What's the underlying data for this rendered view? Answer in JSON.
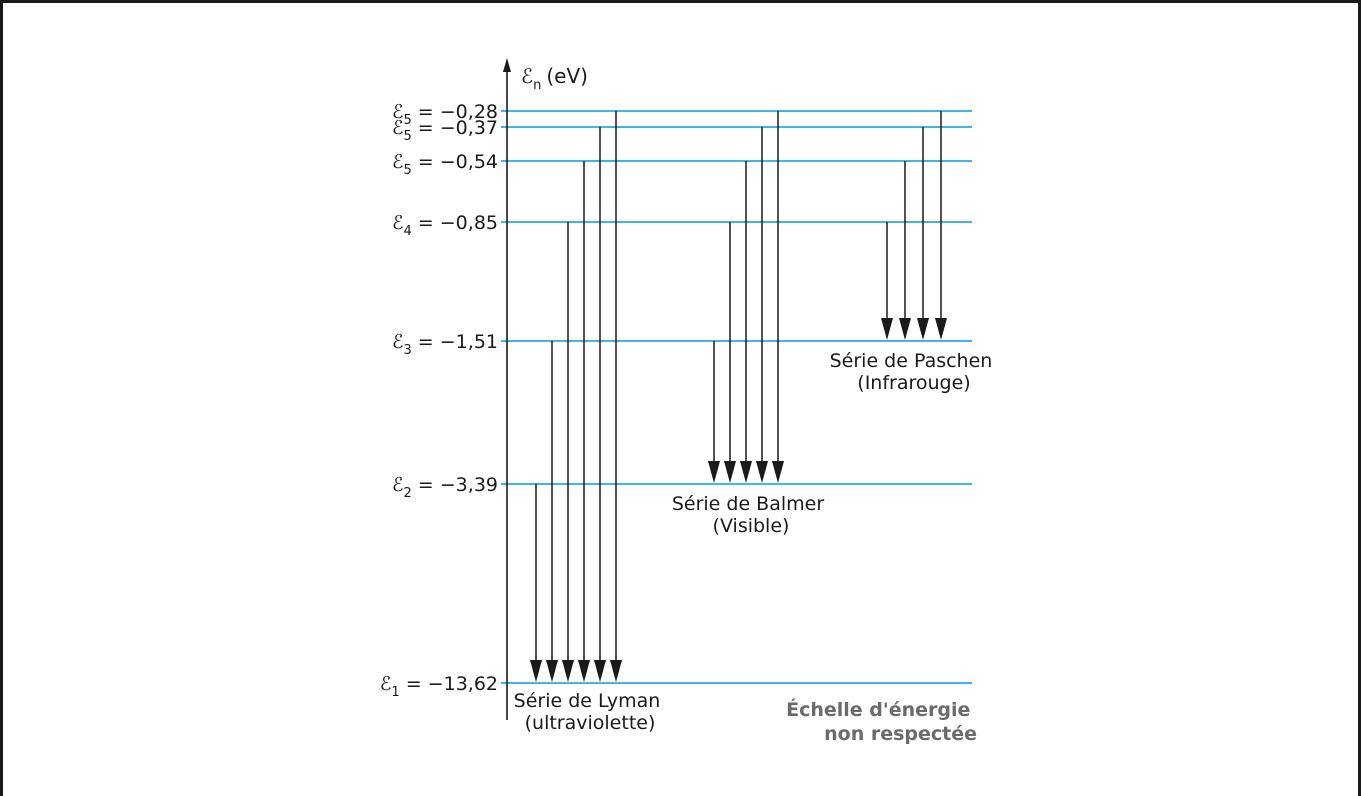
{
  "axis": {
    "symbol": "ℰ",
    "subscript": "n",
    "unit": "(eV)"
  },
  "levels": [
    {
      "symbol": "ℰ",
      "index": "5",
      "value": "−0,28",
      "energy": -0.28
    },
    {
      "symbol": "ℰ",
      "index": "5",
      "value": "−0,37",
      "energy": -0.37
    },
    {
      "symbol": "ℰ",
      "index": "5",
      "value": "−0,54",
      "energy": -0.54
    },
    {
      "symbol": "ℰ",
      "index": "4",
      "value": "−0,85",
      "energy": -0.85
    },
    {
      "symbol": "ℰ",
      "index": "3",
      "value": "−1,51",
      "energy": -1.51
    },
    {
      "symbol": "ℰ",
      "index": "2",
      "value": "−3,39",
      "energy": -3.39
    },
    {
      "symbol": "ℰ",
      "index": "1",
      "value": "−13,62",
      "energy": -13.62
    }
  ],
  "series": [
    {
      "key": "lyman",
      "line1": "Série de Lyman",
      "line2": "(ultraviolette)",
      "target_level": 6,
      "from_levels": [
        5,
        4,
        3,
        2,
        1,
        0
      ]
    },
    {
      "key": "balmer",
      "line1": "Série de Balmer",
      "line2": "(Visible)",
      "target_level": 5,
      "from_levels": [
        4,
        3,
        2,
        1,
        0
      ]
    },
    {
      "key": "paschen",
      "line1": "Série de Paschen",
      "line2": "(Infrarouge)",
      "target_level": 4,
      "from_levels": [
        3,
        2,
        1,
        0
      ]
    }
  ],
  "note": {
    "line1": "Échelle d'énergie",
    "line2": "non respectée"
  },
  "colors": {
    "level_line": "#2aa9df",
    "arrow": "#1a1a1a",
    "text": "#1a1a1a",
    "note": "#6b6b6b",
    "frame": "#1a1a1a"
  }
}
